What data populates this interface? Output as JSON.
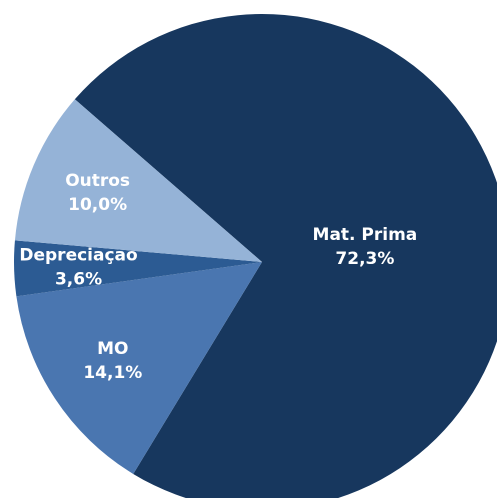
{
  "chart_data": {
    "type": "pie",
    "categories": [
      "Mat. Prima",
      "MO",
      "Depreciação",
      "Outros"
    ],
    "values": [
      72.3,
      14.1,
      3.6,
      10.0
    ],
    "value_labels": [
      "72,3%",
      "14,1%",
      "3,6%",
      "10,0%"
    ],
    "colors": [
      "#17375e",
      "#4a76b0",
      "#2c5b93",
      "#95b3d7"
    ]
  }
}
